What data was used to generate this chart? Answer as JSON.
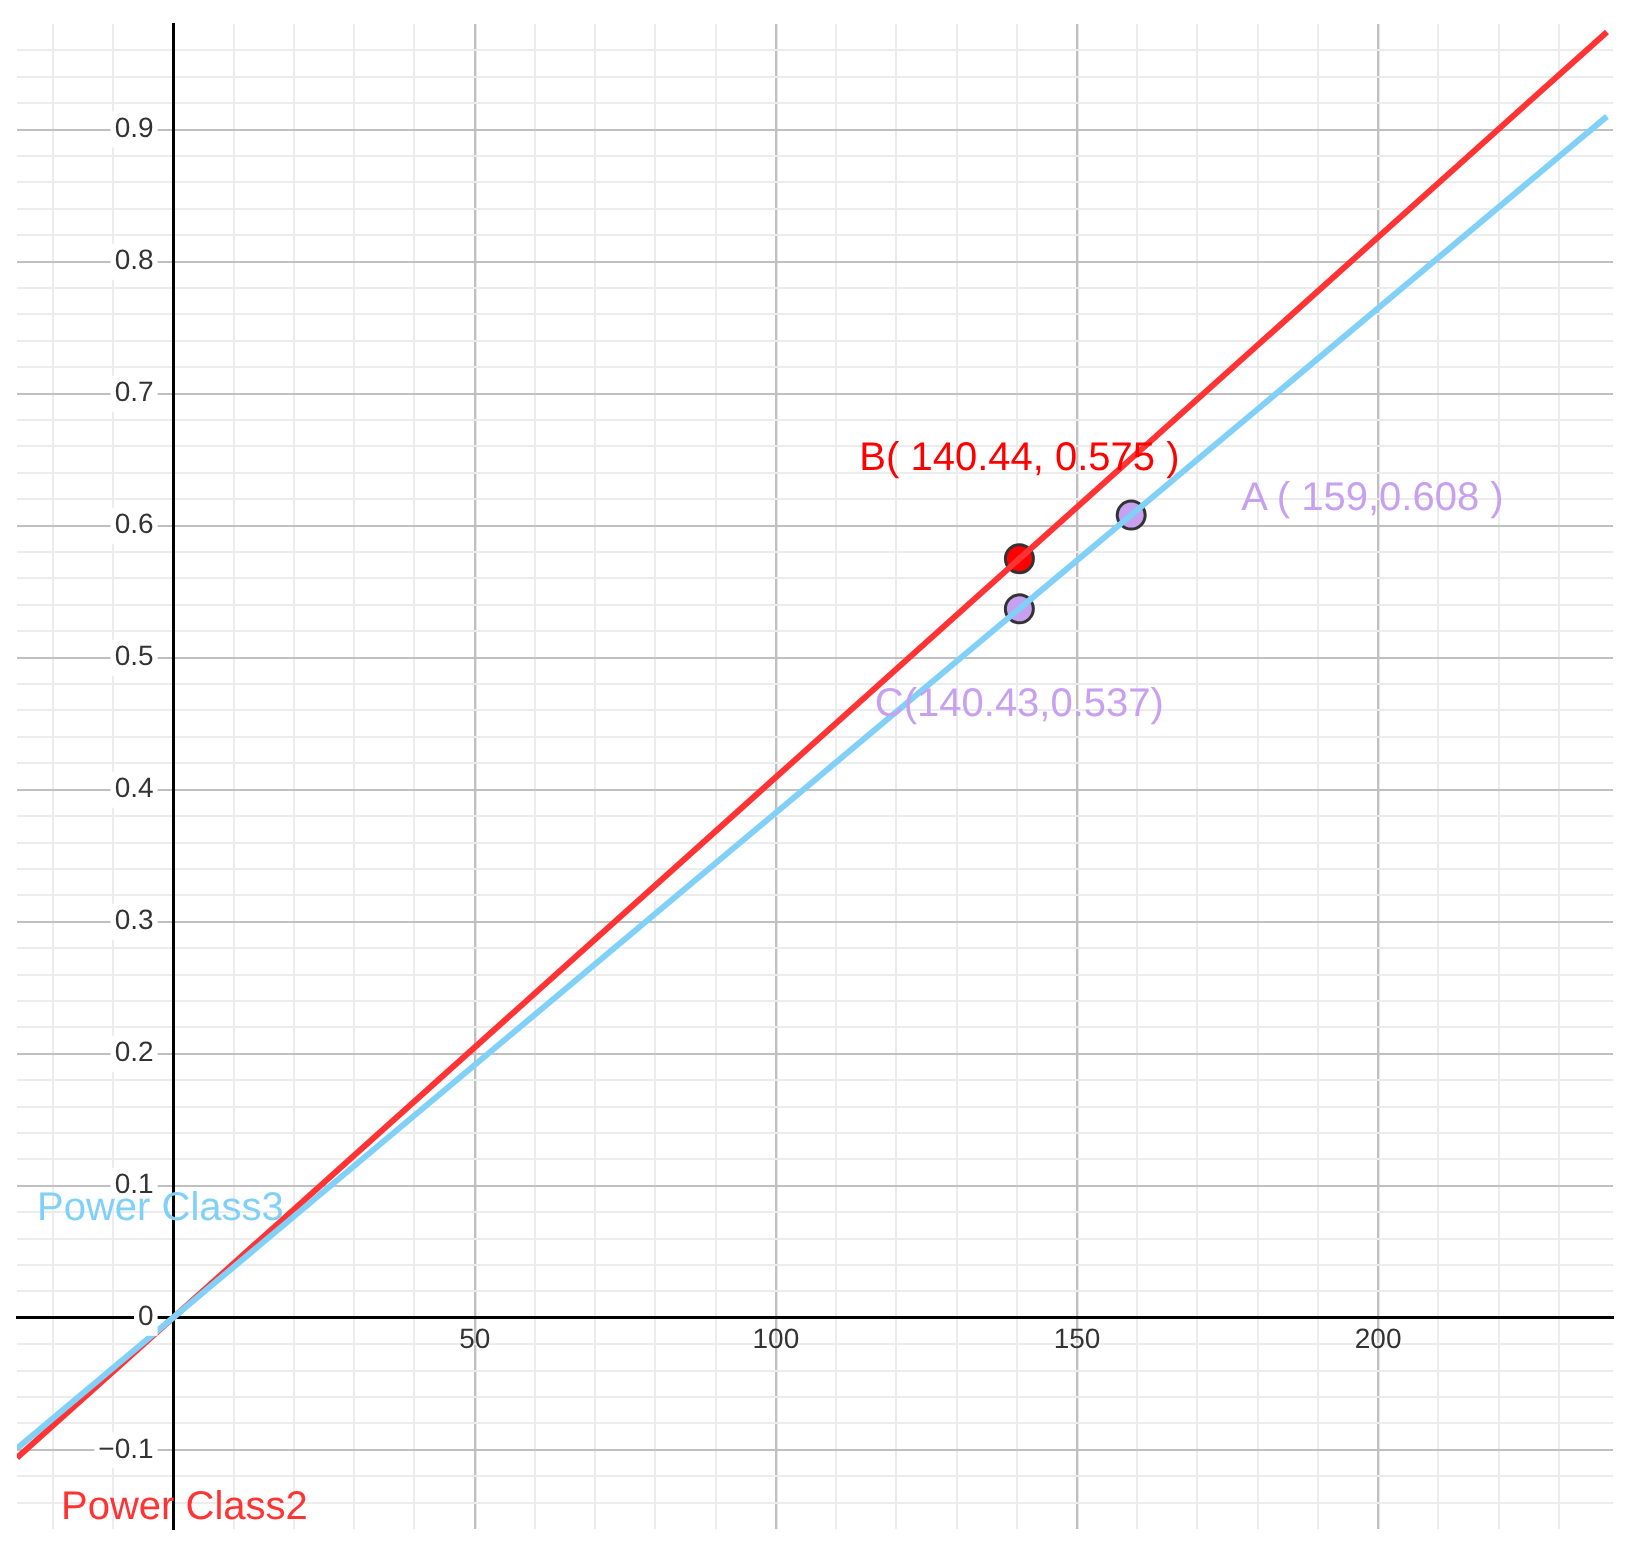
{
  "chart_data": {
    "type": "line",
    "xlim": [
      -26,
      239
    ],
    "ylim": [
      -0.16,
      0.98
    ],
    "xticks": [
      {
        "value": -20,
        "label": null
      },
      {
        "value": -10,
        "label": null
      },
      {
        "value": 10,
        "label": null
      },
      {
        "value": 20,
        "label": null
      },
      {
        "value": 30,
        "label": null
      },
      {
        "value": 40,
        "label": null
      },
      50,
      {
        "value": 60,
        "label": null
      },
      {
        "value": 70,
        "label": null
      },
      {
        "value": 80,
        "label": null
      },
      {
        "value": 90,
        "label": null
      },
      100,
      {
        "value": 110,
        "label": null
      },
      {
        "value": 120,
        "label": null
      },
      {
        "value": 130,
        "label": null
      },
      {
        "value": 140,
        "label": null
      },
      150,
      {
        "value": 160,
        "label": null
      },
      {
        "value": 170,
        "label": null
      },
      {
        "value": 180,
        "label": null
      },
      {
        "value": 190,
        "label": null
      },
      200,
      {
        "value": 210,
        "label": null
      },
      {
        "value": 220,
        "label": null
      },
      {
        "value": 230,
        "label": null
      }
    ],
    "yticks": [
      {
        "value": -0.14,
        "label": null
      },
      {
        "value": -0.12,
        "label": null
      },
      {
        "value": -0.1,
        "label": "−0.1"
      },
      {
        "value": -0.08,
        "label": null
      },
      {
        "value": -0.06,
        "label": null
      },
      {
        "value": -0.04,
        "label": null
      },
      {
        "value": -0.02,
        "label": null
      },
      0,
      {
        "value": 0.02,
        "label": null
      },
      {
        "value": 0.04,
        "label": null
      },
      {
        "value": 0.06,
        "label": null
      },
      {
        "value": 0.08,
        "label": null
      },
      0.1,
      {
        "value": 0.12,
        "label": null
      },
      {
        "value": 0.14,
        "label": null
      },
      {
        "value": 0.16,
        "label": null
      },
      {
        "value": 0.18,
        "label": null
      },
      0.2,
      {
        "value": 0.22,
        "label": null
      },
      {
        "value": 0.24,
        "label": null
      },
      {
        "value": 0.26,
        "label": null
      },
      {
        "value": 0.28,
        "label": null
      },
      0.3,
      {
        "value": 0.32,
        "label": null
      },
      {
        "value": 0.34,
        "label": null
      },
      {
        "value": 0.36,
        "label": null
      },
      {
        "value": 0.38,
        "label": null
      },
      0.4,
      {
        "value": 0.42,
        "label": null
      },
      {
        "value": 0.44,
        "label": null
      },
      {
        "value": 0.46,
        "label": null
      },
      {
        "value": 0.48,
        "label": null
      },
      0.5,
      {
        "value": 0.52,
        "label": null
      },
      {
        "value": 0.54,
        "label": null
      },
      {
        "value": 0.56,
        "label": null
      },
      {
        "value": 0.58,
        "label": null
      },
      0.6,
      {
        "value": 0.62,
        "label": null
      },
      {
        "value": 0.64,
        "label": null
      },
      {
        "value": 0.66,
        "label": null
      },
      {
        "value": 0.68,
        "label": null
      },
      0.7,
      {
        "value": 0.72,
        "label": null
      },
      {
        "value": 0.74,
        "label": null
      },
      {
        "value": 0.76,
        "label": null
      },
      {
        "value": 0.78,
        "label": null
      },
      0.8,
      {
        "value": 0.82,
        "label": null
      },
      {
        "value": 0.84,
        "label": null
      },
      {
        "value": 0.86,
        "label": null
      },
      {
        "value": 0.88,
        "label": null
      },
      0.9,
      {
        "value": 0.92,
        "label": null
      },
      {
        "value": 0.94,
        "label": null
      },
      {
        "value": 0.96,
        "label": null
      }
    ],
    "grid": true,
    "legend": false,
    "marker": "none",
    "line_style": "solid",
    "series": [
      {
        "name": "Power Class3",
        "color": "#80d0f8",
        "x": [
          -26,
          238
        ],
        "values": [
          -0.099,
          0.91
        ]
      },
      {
        "name": "Power Class2",
        "color": "#ff3333",
        "x": [
          -26,
          238
        ],
        "values": [
          -0.106,
          0.974
        ]
      },
      {
        "type": "scatter",
        "marker": "circle",
        "colors": [
          "#c8a0f0",
          "#ff0000",
          "#c8a0f0"
        ],
        "x": [
          159,
          140.44,
          140.43
        ],
        "values": [
          0.608,
          0.575,
          0.537
        ]
      }
    ],
    "annotations": [
      {
        "text": "A ( 159,0.608 )",
        "x": 159,
        "y": 0.608
      },
      {
        "text": "B( 140.44, 0.575 )",
        "x": 140.44,
        "y": 0.575
      },
      {
        "text": "C(140.43,0.537)",
        "x": 140.43,
        "y": 0.537
      }
    ]
  }
}
